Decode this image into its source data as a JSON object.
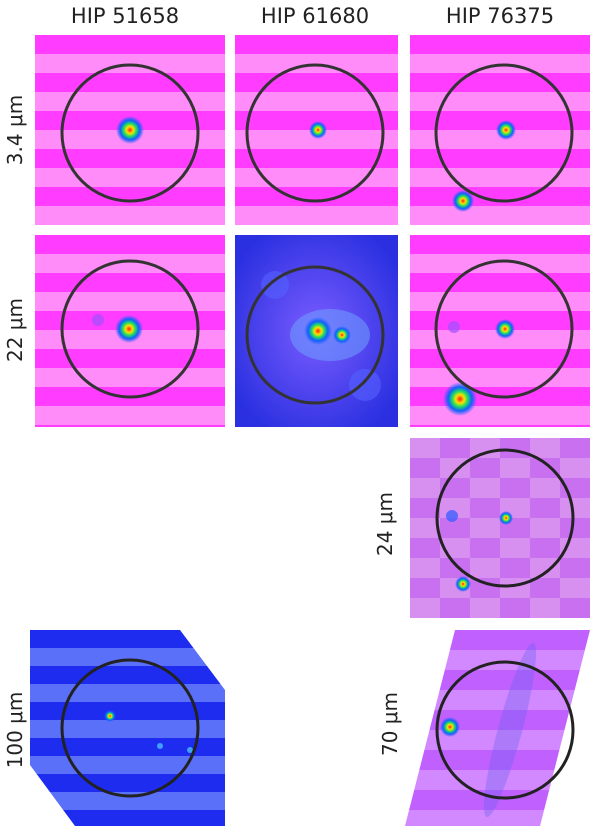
{
  "figure": {
    "columns": [
      "HIP 51658",
      "HIP 61680",
      "HIP 76375"
    ],
    "rows": [
      {
        "label": "3.4 μm"
      },
      {
        "label": "22 μm"
      },
      {
        "label": "24 μm"
      },
      {
        "label": "100 μm"
      },
      {
        "label": "70 μm"
      }
    ],
    "colors": {
      "magenta": "#ff3cff",
      "magenta_light": "#ff8cf8",
      "violet": "#c870f0",
      "blue": "#1e2cf0",
      "ring": "#333333"
    }
  }
}
